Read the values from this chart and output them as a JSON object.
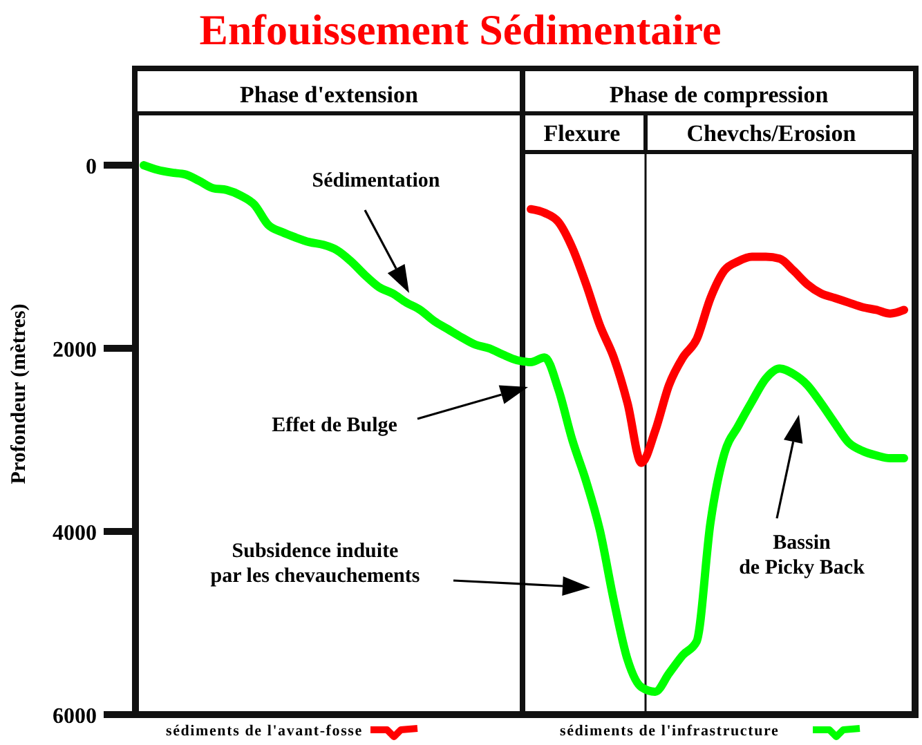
{
  "chart_data": {
    "type": "line",
    "title": "Enfouissement Sédimentaire",
    "ylabel": "Profondeur (mètres)",
    "categories": [
      null,
      null,
      null,
      null,
      null,
      null,
      null,
      null,
      null,
      null,
      null,
      null,
      null,
      null,
      null,
      null,
      null,
      null,
      null,
      null,
      null,
      null,
      null,
      null,
      null,
      null,
      null,
      null,
      null,
      null,
      null,
      null,
      null,
      null,
      null,
      null,
      null,
      null,
      null,
      null,
      null,
      null,
      null,
      null,
      null,
      null,
      null,
      null,
      null,
      null,
      null,
      null,
      null,
      null,
      null,
      null
    ],
    "series": [
      {
        "name": "sédiments de l'avant-fosse",
        "color": "#ff0000",
        "values": [
          null,
          null,
          null,
          null,
          null,
          null,
          null,
          null,
          null,
          null,
          null,
          null,
          null,
          null,
          null,
          null,
          null,
          null,
          null,
          null,
          null,
          null,
          null,
          null,
          null,
          null,
          null,
          null,
          480,
          520,
          620,
          900,
          1300,
          1750,
          2100,
          2600,
          3250,
          2900,
          2400,
          2100,
          1900,
          1450,
          1150,
          1050,
          1000,
          1000,
          1020,
          1150,
          1300,
          1400,
          1450,
          1500,
          1550,
          1580,
          1620,
          1580
        ]
      },
      {
        "name": "sédiments de l'infrastructure",
        "color": "#00ff00",
        "values": [
          0,
          50,
          80,
          100,
          170,
          250,
          270,
          330,
          430,
          650,
          730,
          790,
          840,
          870,
          930,
          1050,
          1200,
          1330,
          1400,
          1500,
          1580,
          1700,
          1790,
          1880,
          1960,
          2000,
          2070,
          2130,
          2150,
          2100,
          2450,
          3000,
          3450,
          3990,
          4750,
          5400,
          5700,
          5750,
          5550,
          5350,
          5200,
          3900,
          3150,
          2850,
          2580,
          2330,
          2220,
          2280,
          2400,
          2600,
          2820,
          3030,
          3120,
          3170,
          3200,
          3200
        ]
      }
    ],
    "ylim": [
      6000,
      -1050
    ],
    "yticks": [
      0,
      2000,
      4000,
      6000
    ],
    "legend": "bottom",
    "annotations": [
      "Phase d'extension",
      "Phase de compression",
      "Flexure",
      "Chevchs/Erosion",
      "Sédimentation",
      "Effet de Bulge",
      "Subsidence induite\npar les chevauchements",
      "Bassin\nde Picky Back"
    ]
  }
}
